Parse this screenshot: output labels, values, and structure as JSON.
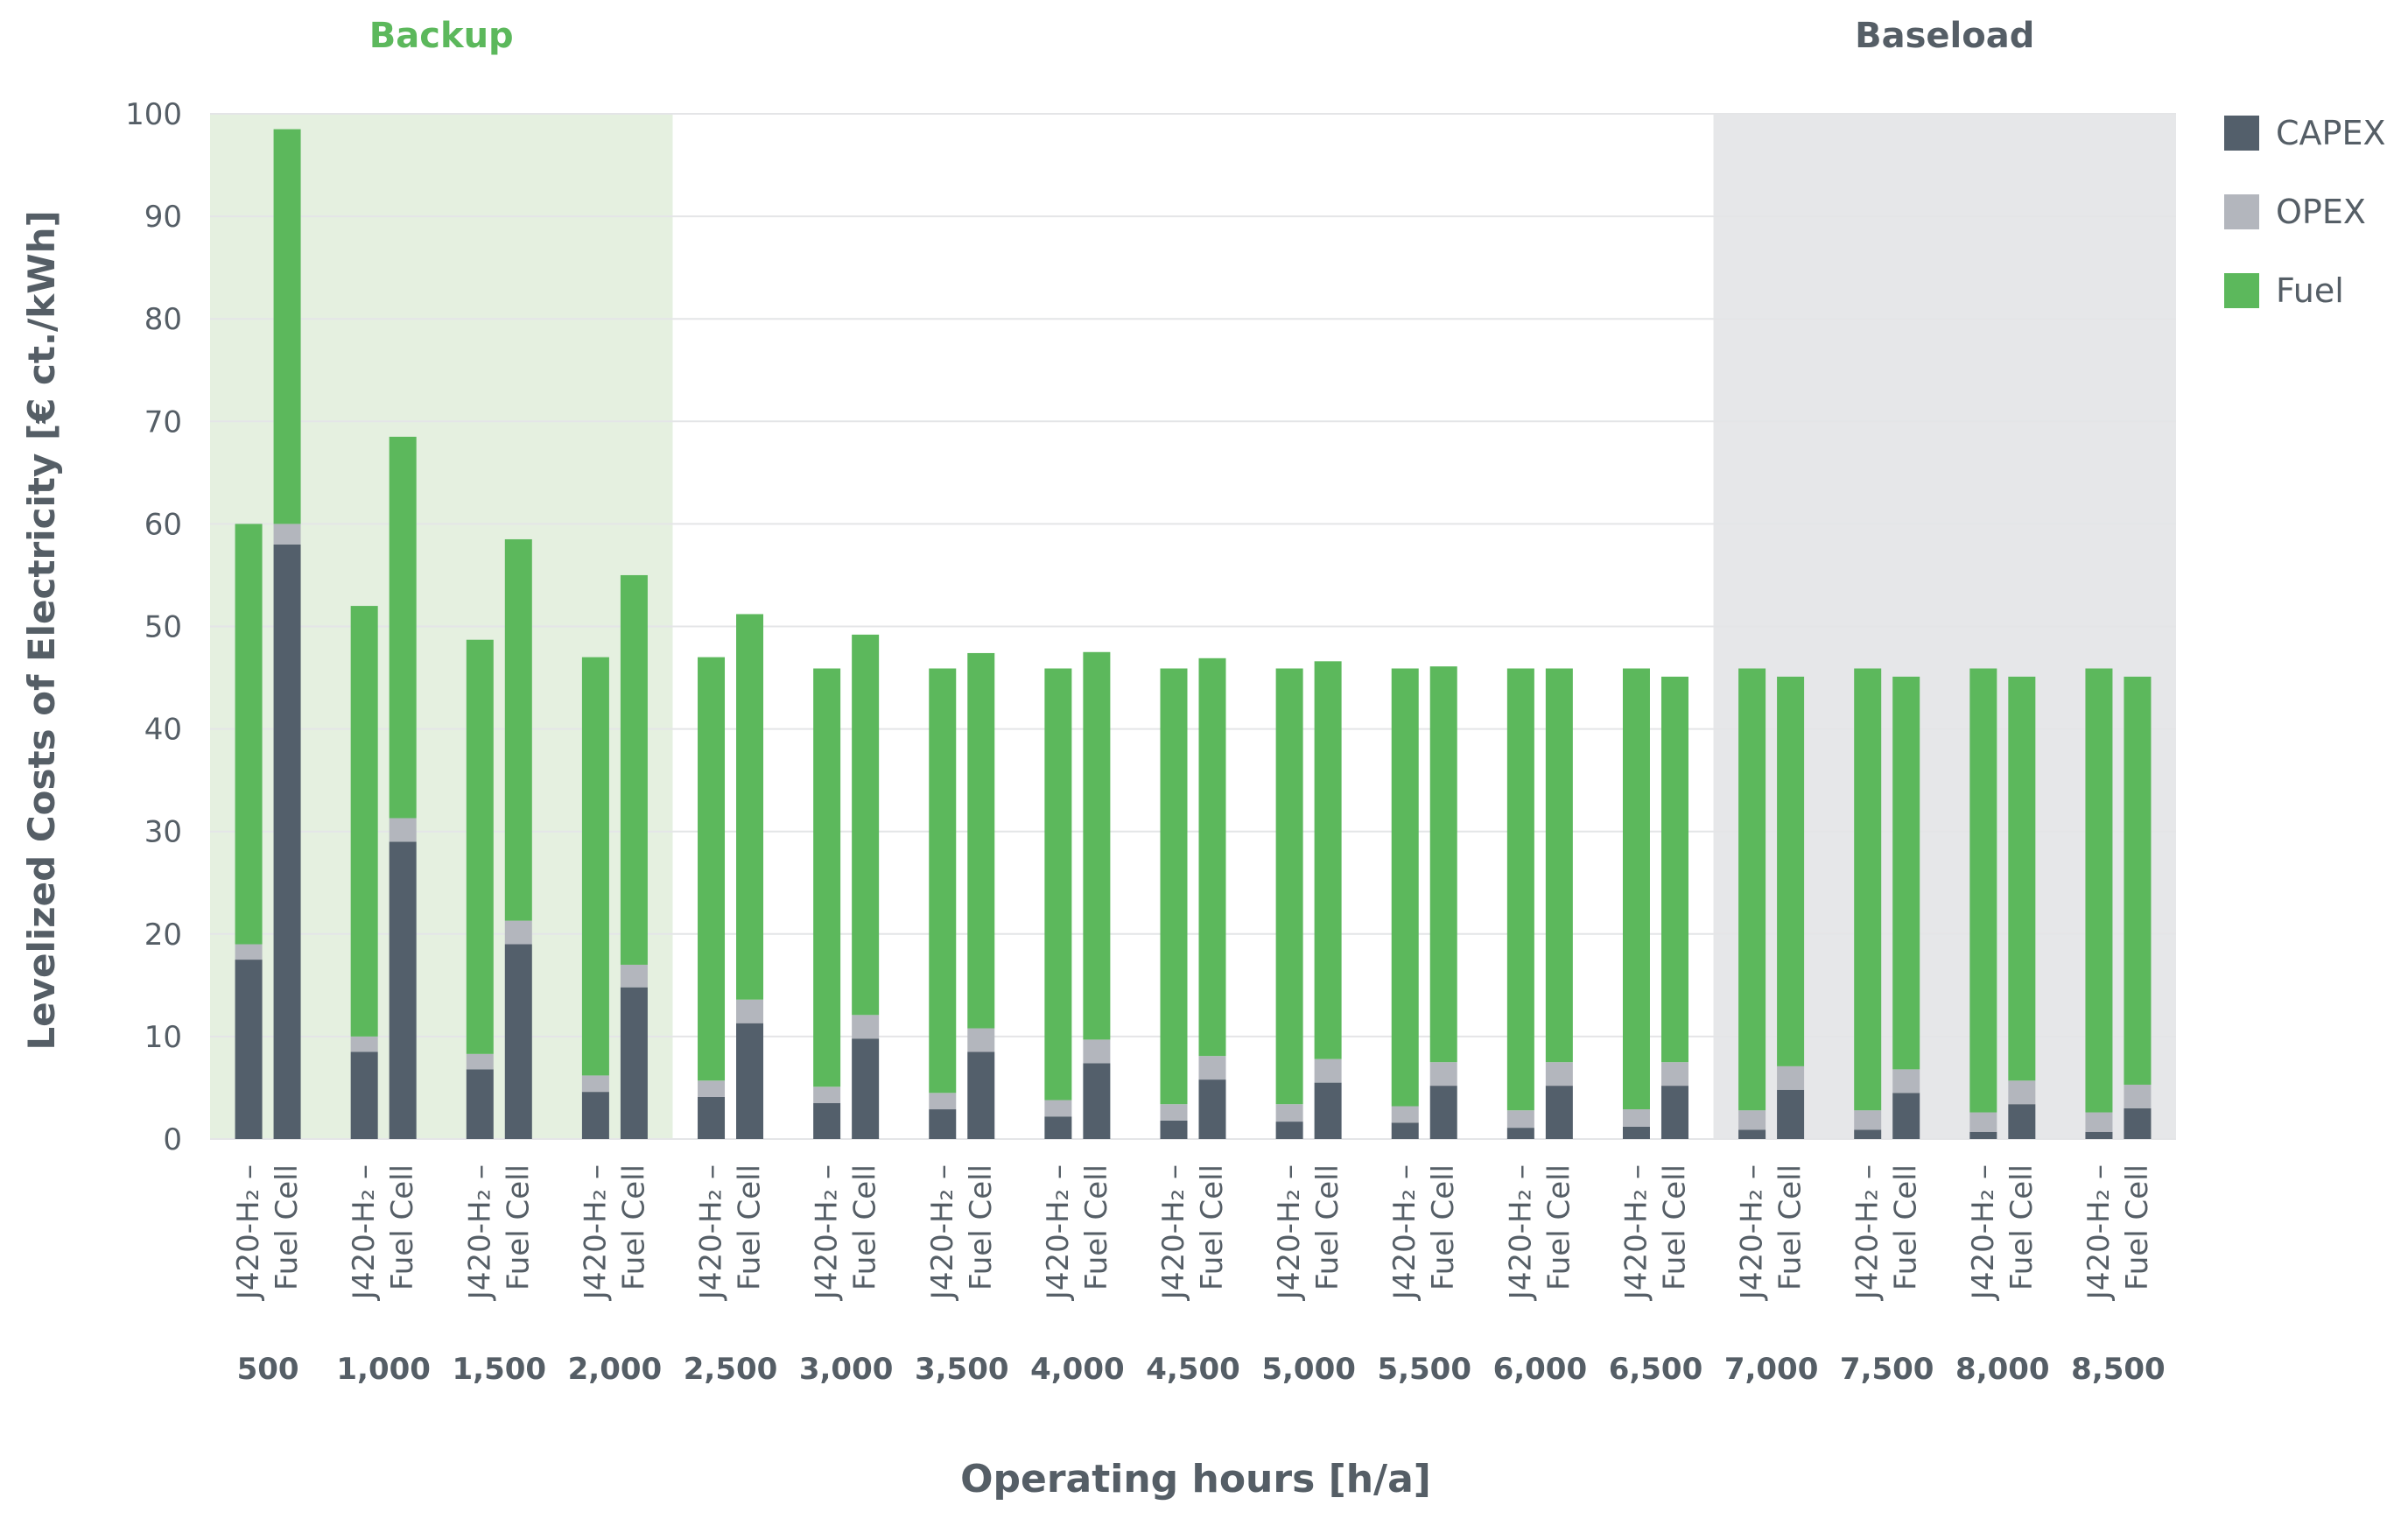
{
  "chart_data": {
    "type": "bar",
    "stacked": true,
    "ylabel": "Levelized Costs of Electricity [€ ct./kWh]",
    "xlabel": "Operating hours [h/a]",
    "ylim": [
      0,
      100
    ],
    "yticks": [
      0,
      10,
      20,
      30,
      40,
      50,
      60,
      70,
      80,
      90,
      100
    ],
    "grid": true,
    "legend_position": "right",
    "bar_labels": [
      "J420-H₂ –",
      "Fuel Cell"
    ],
    "categories": [
      "500",
      "1,000",
      "1,500",
      "2,000",
      "2,500",
      "3,000",
      "3,500",
      "4,000",
      "4,500",
      "5,000",
      "5,500",
      "6,000",
      "6,500",
      "7,000",
      "7,500",
      "8,000",
      "8,500"
    ],
    "regions": [
      {
        "label": "Backup",
        "from_index": 0,
        "to_index": 3,
        "color": "#e5f0e0",
        "label_color": "#5cb85c"
      },
      {
        "label": "Baseload",
        "from_index": 13,
        "to_index": 16,
        "color": "#e6e7e9",
        "label_color": "#555e66"
      }
    ],
    "series": [
      {
        "name": "CAPEX",
        "color": "#535f6b"
      },
      {
        "name": "OPEX",
        "color": "#b3b6bd"
      },
      {
        "name": "Fuel",
        "color": "#5cb85c"
      }
    ],
    "groups": [
      {
        "category": "500",
        "bars": [
          {
            "capex": 17.5,
            "opex": 1.5,
            "fuel": 41.0
          },
          {
            "capex": 58.0,
            "opex": 2.0,
            "fuel": 38.5
          }
        ]
      },
      {
        "category": "1,000",
        "bars": [
          {
            "capex": 8.5,
            "opex": 1.5,
            "fuel": 42.0
          },
          {
            "capex": 29.0,
            "opex": 2.3,
            "fuel": 37.2
          }
        ]
      },
      {
        "category": "1,500",
        "bars": [
          {
            "capex": 6.8,
            "opex": 1.5,
            "fuel": 40.4
          },
          {
            "capex": 19.0,
            "opex": 2.3,
            "fuel": 37.2
          }
        ]
      },
      {
        "category": "2,000",
        "bars": [
          {
            "capex": 4.6,
            "opex": 1.6,
            "fuel": 40.8
          },
          {
            "capex": 14.8,
            "opex": 2.2,
            "fuel": 38.0
          }
        ]
      },
      {
        "category": "2,500",
        "bars": [
          {
            "capex": 4.1,
            "opex": 1.6,
            "fuel": 41.3
          },
          {
            "capex": 11.3,
            "opex": 2.3,
            "fuel": 37.6
          }
        ]
      },
      {
        "category": "3,000",
        "bars": [
          {
            "capex": 3.5,
            "opex": 1.6,
            "fuel": 40.8
          },
          {
            "capex": 9.8,
            "opex": 2.3,
            "fuel": 37.1
          }
        ]
      },
      {
        "category": "3,500",
        "bars": [
          {
            "capex": 2.9,
            "opex": 1.6,
            "fuel": 41.4
          },
          {
            "capex": 8.5,
            "opex": 2.3,
            "fuel": 36.6
          }
        ]
      },
      {
        "category": "4,000",
        "bars": [
          {
            "capex": 2.2,
            "opex": 1.6,
            "fuel": 42.1
          },
          {
            "capex": 7.4,
            "opex": 2.3,
            "fuel": 37.8
          }
        ]
      },
      {
        "category": "4,500",
        "bars": [
          {
            "capex": 1.8,
            "opex": 1.6,
            "fuel": 42.5
          },
          {
            "capex": 5.8,
            "opex": 2.3,
            "fuel": 38.8
          }
        ]
      },
      {
        "category": "5,000",
        "bars": [
          {
            "capex": 1.7,
            "opex": 1.7,
            "fuel": 42.5
          },
          {
            "capex": 5.5,
            "opex": 2.3,
            "fuel": 38.8
          }
        ]
      },
      {
        "category": "5,500",
        "bars": [
          {
            "capex": 1.6,
            "opex": 1.6,
            "fuel": 42.7
          },
          {
            "capex": 5.2,
            "opex": 2.3,
            "fuel": 38.6
          }
        ]
      },
      {
        "category": "6,000",
        "bars": [
          {
            "capex": 1.1,
            "opex": 1.7,
            "fuel": 43.1
          },
          {
            "capex": 5.2,
            "opex": 2.3,
            "fuel": 38.4
          }
        ]
      },
      {
        "category": "6,500",
        "bars": [
          {
            "capex": 1.2,
            "opex": 1.7,
            "fuel": 43.0
          },
          {
            "capex": 5.2,
            "opex": 2.3,
            "fuel": 37.6
          }
        ]
      },
      {
        "category": "7,000",
        "bars": [
          {
            "capex": 0.9,
            "opex": 1.9,
            "fuel": 43.1
          },
          {
            "capex": 4.8,
            "opex": 2.3,
            "fuel": 38.0
          }
        ]
      },
      {
        "category": "7,500",
        "bars": [
          {
            "capex": 0.9,
            "opex": 1.9,
            "fuel": 43.1
          },
          {
            "capex": 4.5,
            "opex": 2.3,
            "fuel": 38.3
          }
        ]
      },
      {
        "category": "8,000",
        "bars": [
          {
            "capex": 0.7,
            "opex": 1.9,
            "fuel": 43.3
          },
          {
            "capex": 3.4,
            "opex": 2.3,
            "fuel": 39.4
          }
        ]
      },
      {
        "category": "8,500",
        "bars": [
          {
            "capex": 0.7,
            "opex": 1.9,
            "fuel": 43.3
          },
          {
            "capex": 3.0,
            "opex": 2.3,
            "fuel": 39.8
          }
        ]
      }
    ]
  }
}
